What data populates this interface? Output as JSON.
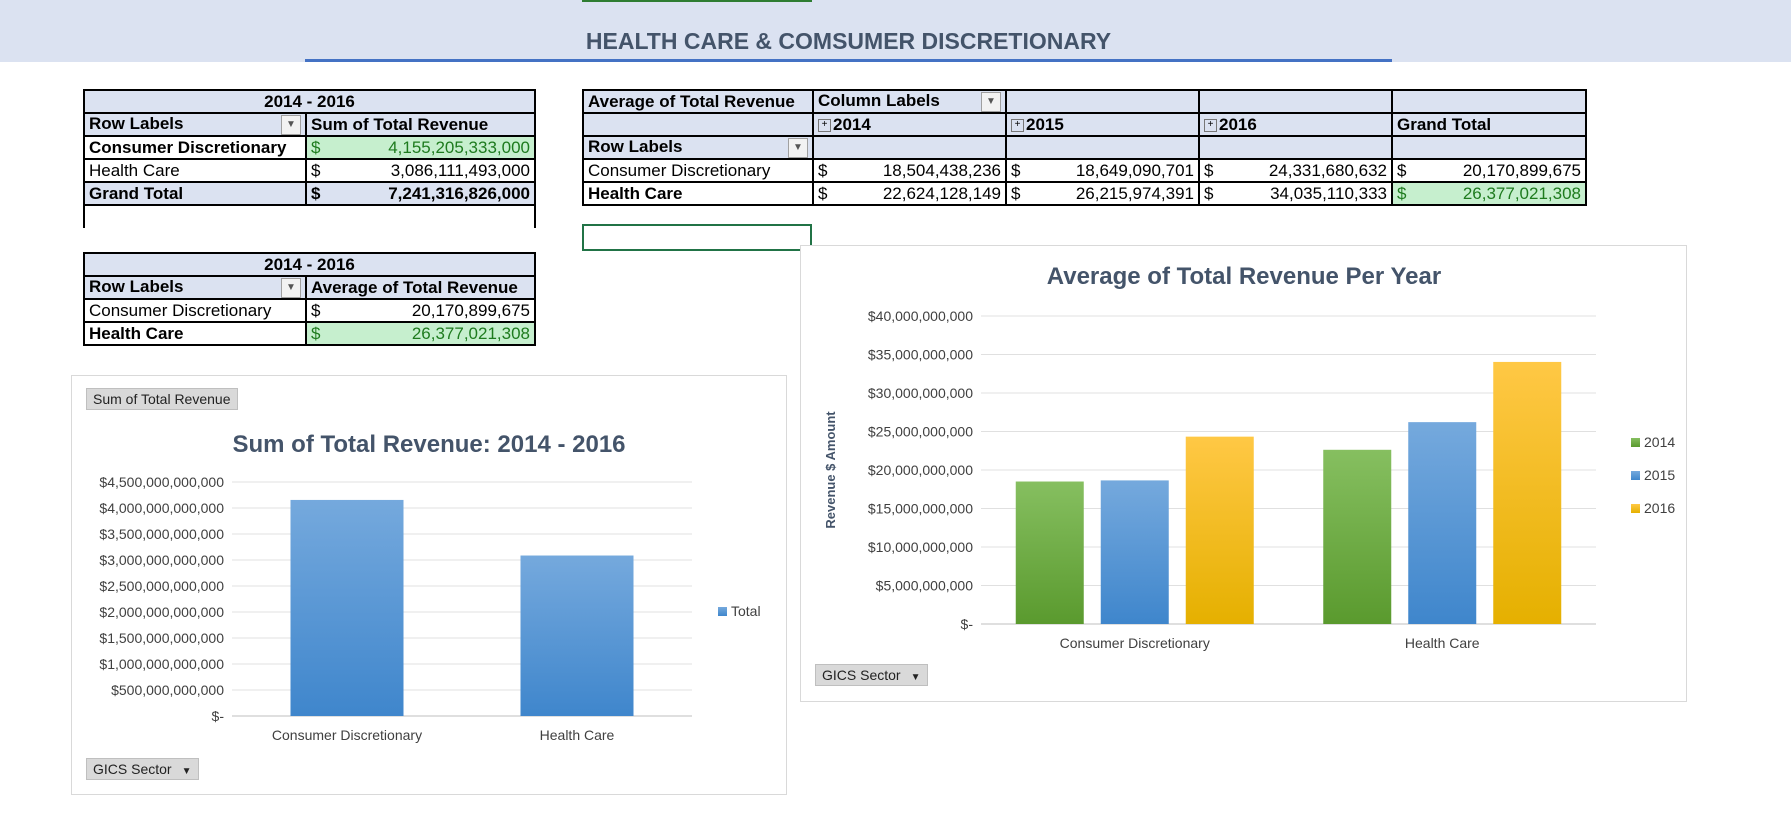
{
  "page": {
    "title": "HEALTH CARE & COMSUMER DISCRETIONARY"
  },
  "pivot_sum": {
    "caption": "2014 - 2016",
    "col_row_labels": "Row Labels",
    "col_value": "Sum of  Total Revenue",
    "rows": [
      {
        "label": "Consumer Discretionary",
        "currency": "$",
        "value": "4,155,205,333,000"
      },
      {
        "label": "Health Care",
        "currency": "$",
        "value": "3,086,111,493,000"
      }
    ],
    "total": {
      "label": "Grand Total",
      "currency": "$",
      "value": "7,241,316,826,000"
    }
  },
  "pivot_avg_small": {
    "caption": "2014 - 2016",
    "col_row_labels": "Row Labels",
    "col_value": "Average of  Total Revenue",
    "rows": [
      {
        "label": "Consumer Discretionary",
        "currency": "$",
        "value": "20,170,899,675"
      },
      {
        "label": "Health Care",
        "currency": "$",
        "value": "26,377,021,308"
      }
    ]
  },
  "pivot_avg_year": {
    "values_label": "Average of  Total Revenue",
    "column_labels": "Column Labels",
    "row_labels": "Row Labels",
    "years": [
      "2014",
      "2015",
      "2016"
    ],
    "grand_total": "Grand Total",
    "rows": [
      {
        "label": "Consumer Discretionary",
        "currency": "$",
        "values": [
          "18,504,438,236",
          "18,649,090,701",
          "24,331,680,632",
          "20,170,899,675"
        ]
      },
      {
        "label": "Health Care",
        "currency": "$",
        "values": [
          "22,624,128,149",
          "26,215,974,391",
          "34,035,110,333",
          "26,377,021,308"
        ]
      }
    ]
  },
  "chart1_ui": {
    "field_button_top": "Sum of  Total Revenue",
    "field_button_bottom": "GICS Sector"
  },
  "chart2_ui": {
    "field_button_bottom": "GICS Sector"
  },
  "colors": {
    "green": "#70ad47",
    "blue": "#5b9bd5",
    "gold": "#ffc000",
    "title": "#44546a"
  },
  "chart_data": [
    {
      "type": "bar",
      "title": "Sum of Total Revenue: 2014 - 2016",
      "categories": [
        "Consumer Discretionary",
        "Health Care"
      ],
      "series": [
        {
          "name": "Total",
          "values": [
            4155205333000,
            3086111493000
          ]
        }
      ],
      "ylim": [
        0,
        4500000000000
      ],
      "yticks": [
        "$-",
        "$500,000,000,000",
        "$1,000,000,000,000",
        "$1,500,000,000,000",
        "$2,000,000,000,000",
        "$2,500,000,000,000",
        "$3,000,000,000,000",
        "$3,500,000,000,000",
        "$4,000,000,000,000",
        "$4,500,000,000,000"
      ],
      "legend": "right",
      "grid": true
    },
    {
      "type": "bar",
      "title": "Average of Total Revenue Per Year",
      "ylabel": "Revenue $ Amount",
      "categories": [
        "Consumer Discretionary",
        "Health Care"
      ],
      "series": [
        {
          "name": "2014",
          "values": [
            18504438236,
            22624128149
          ]
        },
        {
          "name": "2015",
          "values": [
            18649090701,
            26215974391
          ]
        },
        {
          "name": "2016",
          "values": [
            24331680632,
            34035110333
          ]
        }
      ],
      "ylim": [
        0,
        40000000000
      ],
      "yticks": [
        "$-",
        "$5,000,000,000",
        "$10,000,000,000",
        "$15,000,000,000",
        "$20,000,000,000",
        "$25,000,000,000",
        "$30,000,000,000",
        "$35,000,000,000",
        "$40,000,000,000"
      ],
      "legend": "right",
      "grid": true
    }
  ]
}
